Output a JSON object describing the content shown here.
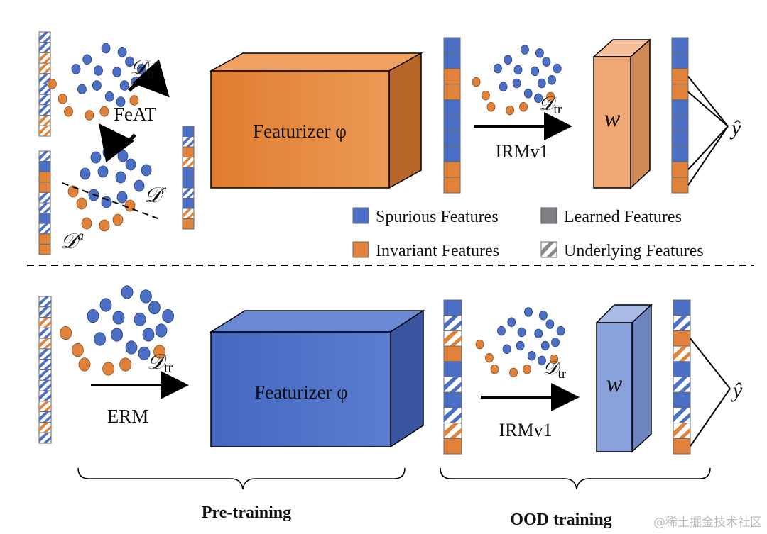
{
  "colors": {
    "spurious": "#4a6fc4",
    "invariant": "#e0823a",
    "learned": "#7f7f85",
    "box_orange": "#e8883a",
    "box_blue": "#4f72c8",
    "w_orange": "#f0a874",
    "w_blue": "#8aa2dc"
  },
  "top": {
    "dataset_label": "𝒟",
    "dataset_sub": "tr",
    "feat_label": "FeAT",
    "retain_label": "𝒟",
    "retain_sup": "r",
    "aug_label": "𝒟",
    "aug_sup": "a",
    "featurizer_label": "Featurizer φ",
    "method_label": "IRMv1",
    "irm_dataset_label": "𝒟",
    "irm_dataset_sub": "tr",
    "w_label": "w",
    "output_label": "ŷ"
  },
  "bottom": {
    "dataset_label": "𝒟",
    "dataset_sub": "tr",
    "method_label": "ERM",
    "featurizer_label": "Featurizer φ",
    "ood_dataset_label": "𝒟",
    "ood_dataset_sub": "tr",
    "ood_method_label": "IRMv1",
    "w_label": "w",
    "output_label": "ŷ"
  },
  "legend": [
    {
      "label": "Spurious Features",
      "kind": "spurious"
    },
    {
      "label": "Learned  Features",
      "kind": "learned"
    },
    {
      "label": "Invariant Features",
      "kind": "invariant"
    },
    {
      "label": "Underlying Features",
      "kind": "underlying"
    }
  ],
  "stages": {
    "pretraining": "Pre-training",
    "ood": "OOD training"
  },
  "watermark": "@稀土掘金技术社区",
  "vectors": {
    "v1": [
      "us",
      "us",
      "ui",
      "ui",
      "us",
      "us",
      "us",
      "us",
      "ui",
      "ui"
    ],
    "v2": [
      "us",
      "s",
      "i",
      "i",
      "us",
      "us",
      "s",
      "us",
      "i",
      "i"
    ],
    "v3": [
      "s",
      "us",
      "i",
      "ui",
      "s",
      "s",
      "us",
      "s",
      "ui",
      "i"
    ],
    "v4": [
      "s",
      "s",
      "i",
      "i",
      "s",
      "s",
      "s",
      "s",
      "i",
      "i"
    ],
    "v5": [
      "s",
      "s",
      "i",
      "i",
      "s",
      "s",
      "s",
      "s",
      "i",
      "i"
    ],
    "v6": [
      "us",
      "us",
      "ui",
      "us",
      "ui",
      "us",
      "us",
      "us",
      "us",
      "us",
      "ui",
      "us",
      "ui",
      "us"
    ],
    "v7": [
      "s",
      "us",
      "ui",
      "i",
      "s",
      "us",
      "s",
      "us",
      "ui",
      "i"
    ],
    "v8": [
      "s",
      "us",
      "i",
      "ui",
      "s",
      "us",
      "s",
      "us",
      "ui",
      "i"
    ]
  }
}
